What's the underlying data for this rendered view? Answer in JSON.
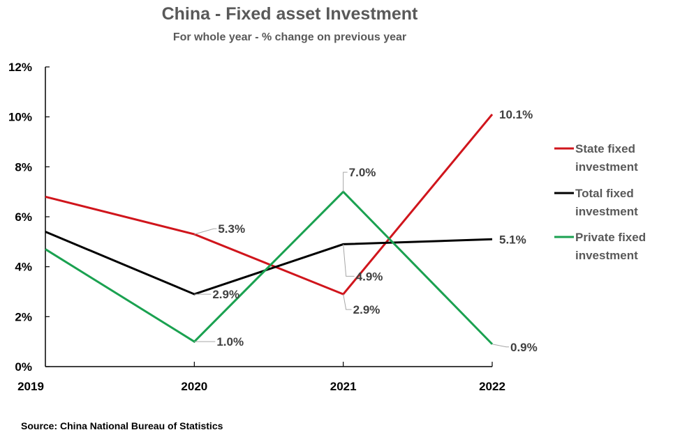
{
  "chart_data": {
    "type": "line",
    "title": "China - Fixed asset Investment",
    "subtitle": "For whole year - % change on previous year",
    "xlabel": "",
    "ylabel": "",
    "categories": [
      "2019",
      "2020",
      "2021",
      "2022"
    ],
    "ylim": [
      0,
      12
    ],
    "yticks": [
      0,
      2,
      4,
      6,
      8,
      10,
      12
    ],
    "ytick_labels": [
      "0%",
      "2%",
      "4%",
      "6%",
      "8%",
      "10%",
      "12%"
    ],
    "grid": false,
    "legend_position": "right",
    "series": [
      {
        "name": "State fixed investment",
        "legend_lines": [
          "State fixed",
          "investment"
        ],
        "color": "#d0151c",
        "values": [
          6.8,
          5.3,
          2.9,
          10.1
        ],
        "labels": [
          null,
          "5.3%",
          "2.9%",
          "10.1%"
        ]
      },
      {
        "name": "Total fixed investment",
        "legend_lines": [
          "Total fixed",
          "investment"
        ],
        "color": "#000000",
        "values": [
          5.4,
          2.9,
          4.9,
          5.1
        ],
        "labels": [
          null,
          "2.9%",
          "4.9%",
          "5.1%"
        ]
      },
      {
        "name": "Private fixed investment",
        "legend_lines": [
          "Private fixed",
          "investment"
        ],
        "color": "#1aa150",
        "values": [
          4.7,
          1.0,
          7.0,
          0.9
        ],
        "labels": [
          null,
          "1.0%",
          "7.0%",
          "0.9%"
        ]
      }
    ],
    "source": "Source: China National Bureau of Statistics"
  }
}
